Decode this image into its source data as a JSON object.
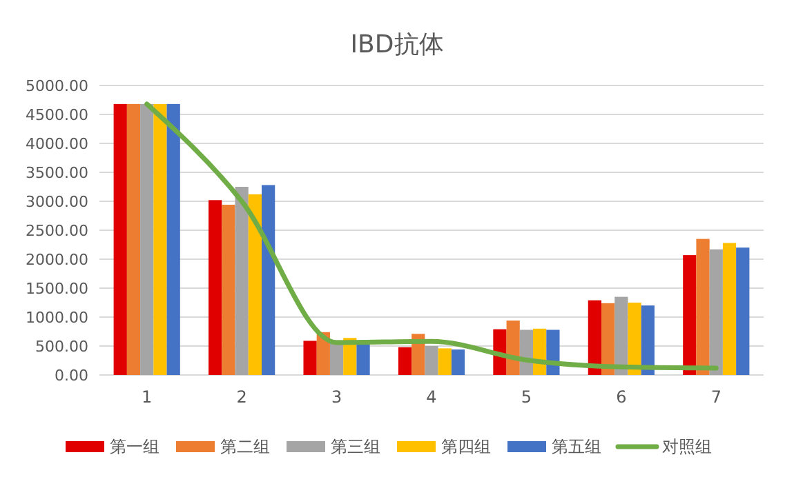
{
  "chart_data": {
    "type": "bar",
    "title": "IBD抗体",
    "categories": [
      "1",
      "2",
      "3",
      "4",
      "5",
      "6",
      "7"
    ],
    "series": [
      {
        "name": "第一组",
        "color": "#e00000",
        "values": [
          4680,
          3020,
          590,
          480,
          790,
          1290,
          2070
        ]
      },
      {
        "name": "第二组",
        "color": "#ed7d31",
        "values": [
          4680,
          2940,
          740,
          710,
          940,
          1240,
          2350
        ]
      },
      {
        "name": "第三组",
        "color": "#a5a5a5",
        "values": [
          4680,
          3250,
          600,
          500,
          780,
          1350,
          2170
        ]
      },
      {
        "name": "第四组",
        "color": "#ffc000",
        "values": [
          4680,
          3120,
          640,
          460,
          800,
          1250,
          2280
        ]
      },
      {
        "name": "第五组",
        "color": "#4472c4",
        "values": [
          4680,
          3280,
          560,
          440,
          780,
          1200,
          2200
        ]
      },
      {
        "name": "对照组",
        "type": "line",
        "color": "#70ad47",
        "values": [
          4680,
          3000,
          560,
          580,
          260,
          140,
          120
        ]
      }
    ],
    "ylim": [
      0,
      5000
    ],
    "yticks": [
      {
        "value": 0,
        "label": "0.00"
      },
      {
        "value": 500,
        "label": "500.00"
      },
      {
        "value": 1000,
        "label": "1000.00"
      },
      {
        "value": 1500,
        "label": "1500.00"
      },
      {
        "value": 2000,
        "label": "2000.00"
      },
      {
        "value": 2500,
        "label": "2500.00"
      },
      {
        "value": 3000,
        "label": "3000.00"
      },
      {
        "value": 3500,
        "label": "3500.00"
      },
      {
        "value": 4000,
        "label": "4000.00"
      },
      {
        "value": 4500,
        "label": "4500.00"
      },
      {
        "value": 5000,
        "label": "5000.00"
      }
    ],
    "grid": "y",
    "legend": "bottom"
  }
}
